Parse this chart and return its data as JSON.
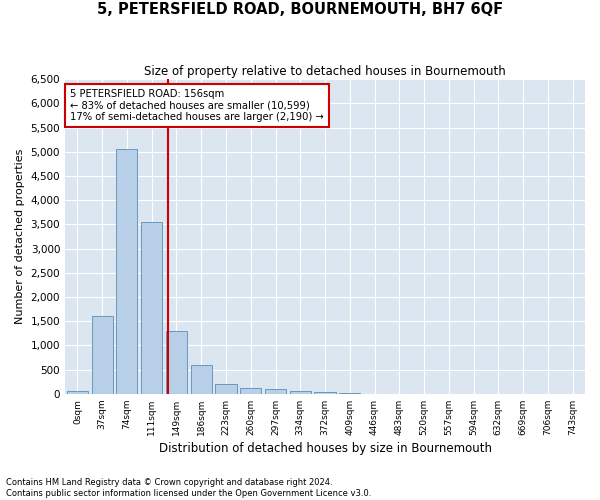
{
  "title": "5, PETERSFIELD ROAD, BOURNEMOUTH, BH7 6QF",
  "subtitle": "Size of property relative to detached houses in Bournemouth",
  "xlabel": "Distribution of detached houses by size in Bournemouth",
  "ylabel": "Number of detached properties",
  "bar_color": "#b8cfe8",
  "bar_edge_color": "#5b8db8",
  "background_color": "#dce6f0",
  "grid_color": "#ffffff",
  "annotation_box_color": "#cc0000",
  "vline_color": "#cc0000",
  "categories": [
    "0sqm",
    "37sqm",
    "74sqm",
    "111sqm",
    "149sqm",
    "186sqm",
    "223sqm",
    "260sqm",
    "297sqm",
    "334sqm",
    "372sqm",
    "409sqm",
    "446sqm",
    "483sqm",
    "520sqm",
    "557sqm",
    "594sqm",
    "632sqm",
    "669sqm",
    "706sqm",
    "743sqm"
  ],
  "values": [
    50,
    1600,
    5050,
    3550,
    1300,
    600,
    200,
    110,
    90,
    50,
    30,
    10,
    0,
    0,
    0,
    0,
    0,
    0,
    0,
    0,
    0
  ],
  "ylim": [
    0,
    6500
  ],
  "yticks": [
    0,
    500,
    1000,
    1500,
    2000,
    2500,
    3000,
    3500,
    4000,
    4500,
    5000,
    5500,
    6000,
    6500
  ],
  "annotation_line1": "5 PETERSFIELD ROAD: 156sqm",
  "annotation_line2": "← 83% of detached houses are smaller (10,599)",
  "annotation_line3": "17% of semi-detached houses are larger (2,190) →",
  "vline_x_index": 3.65,
  "footer_line1": "Contains HM Land Registry data © Crown copyright and database right 2024.",
  "footer_line2": "Contains public sector information licensed under the Open Government Licence v3.0."
}
